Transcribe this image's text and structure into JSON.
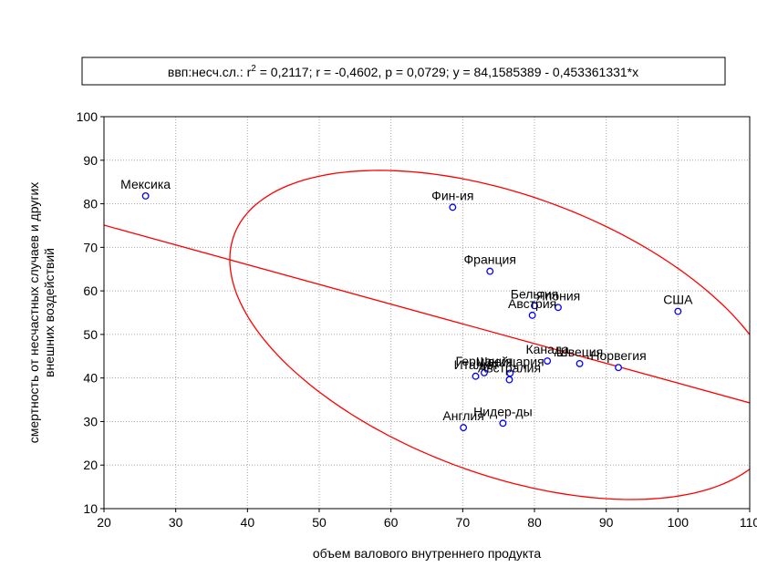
{
  "chart_data": {
    "type": "scatter",
    "title": "ввп:несч.сл.:  r² = 0,2117;  r = -0,4602, p = 0,0729;  y = 84,1585389 - 0,453361331*x",
    "title_parts": {
      "before_sup": "ввп:несч.сл.:  r",
      "sup": "2",
      "after_sup": " = 0,2117;  r = -0,4602, p = 0,0729;  y = 84,1585389 - 0,453361331*x"
    },
    "xlabel": "объем валового внутреннего продукта",
    "ylabel_lines": [
      "смертность от несчастных случаев и других",
      "внешних воздействий"
    ],
    "xlim": [
      20,
      110
    ],
    "ylim": [
      10,
      100
    ],
    "xticks": [
      20,
      30,
      40,
      50,
      60,
      70,
      80,
      90,
      100,
      110
    ],
    "yticks": [
      10,
      20,
      30,
      40,
      50,
      60,
      70,
      80,
      90,
      100
    ],
    "grid": true,
    "regression": {
      "intercept": 84.1585389,
      "slope": -0.453361331
    },
    "points": [
      {
        "label": "Мексика",
        "x": 25.8,
        "y": 81.8
      },
      {
        "label": "Фин-ия",
        "x": 68.6,
        "y": 79.2
      },
      {
        "label": "Франция",
        "x": 73.8,
        "y": 64.5
      },
      {
        "label": "Бельгия",
        "x": 80.0,
        "y": 56.6
      },
      {
        "label": "Япония",
        "x": 83.3,
        "y": 56.2
      },
      {
        "label": "Австрия",
        "x": 79.7,
        "y": 54.4
      },
      {
        "label": "США",
        "x": 100.0,
        "y": 55.3
      },
      {
        "label": "Канада",
        "x": 81.8,
        "y": 43.9
      },
      {
        "label": "Швеция",
        "x": 86.3,
        "y": 43.3
      },
      {
        "label": "Норвегия",
        "x": 91.7,
        "y": 42.4
      },
      {
        "label": "Италия",
        "x": 71.8,
        "y": 40.4
      },
      {
        "label": "Германия",
        "x": 73.0,
        "y": 41.2
      },
      {
        "label": "Швейцария",
        "x": 76.6,
        "y": 41.1
      },
      {
        "label": "Австралия",
        "x": 76.5,
        "y": 39.6
      },
      {
        "label": "Нидер-ды",
        "x": 75.6,
        "y": 29.6
      },
      {
        "label": "Англия",
        "x": 70.1,
        "y": 28.6
      }
    ],
    "colors": {
      "points": "#0000ff",
      "fit": "#ff0000",
      "grid": "#a8a8a8"
    }
  }
}
